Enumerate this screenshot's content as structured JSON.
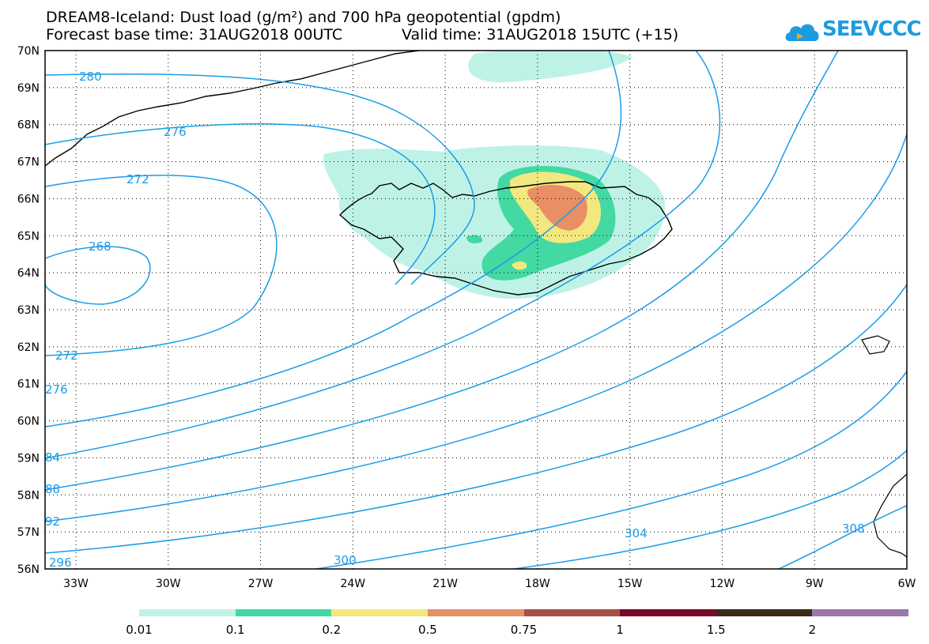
{
  "title": {
    "line1": "DREAM8-Iceland: Dust load (g/m²) and 700 hPa geopotential (gpdm)",
    "base_time": "Forecast base time: 31AUG2018 00UTC",
    "valid_time": "Valid time: 31AUG2018 15UTC (+15)"
  },
  "logo": {
    "text": "SEEVCCC",
    "color": "#1d9be0"
  },
  "axes": {
    "lon_labels": [
      "33W",
      "30W",
      "27W",
      "24W",
      "21W",
      "18W",
      "15W",
      "12W",
      "9W",
      "6W"
    ],
    "lat_labels": [
      "70N",
      "69N",
      "68N",
      "67N",
      "66N",
      "65N",
      "64N",
      "63N",
      "62N",
      "61N",
      "60N",
      "59N",
      "58N",
      "57N",
      "56N"
    ]
  },
  "contour_labels": [
    "280",
    "276",
    "272",
    "268",
    "272",
    "276",
    "84",
    "88",
    "92",
    "296",
    "300",
    "304",
    "308"
  ],
  "colorbar": {
    "labels": [
      "0.01",
      "0.1",
      "0.2",
      "0.5",
      "0.75",
      "1",
      "1.5",
      "2"
    ],
    "colors": [
      "#bff2e6",
      "#43d9a3",
      "#f2e87f",
      "#e88f66",
      "#a85048",
      "#7a0a2a",
      "#3a2a18",
      "#9a78a8"
    ]
  },
  "colors": {
    "contour": "#1a9ce8",
    "coast": "#000000"
  }
}
